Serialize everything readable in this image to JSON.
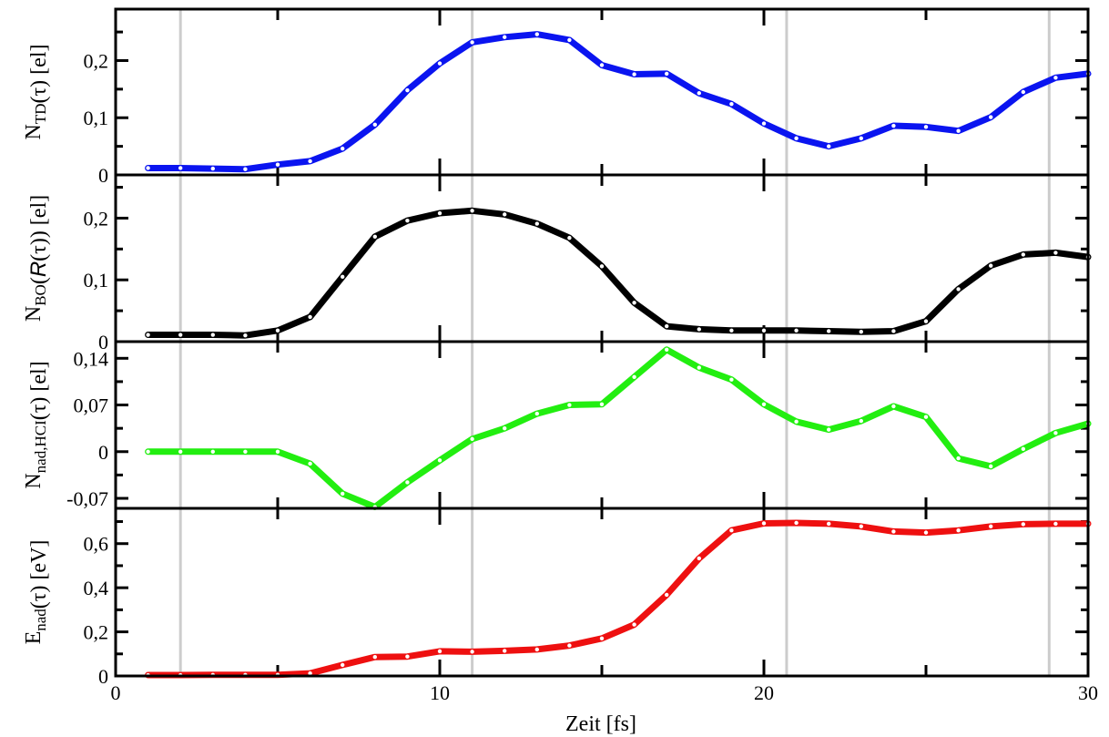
{
  "chart_data": {
    "type": "line",
    "xlabel": "Zeit [fs]",
    "xlim": [
      0,
      30
    ],
    "xticks": [
      0,
      10,
      20,
      30
    ],
    "xtick_labels": [
      "0",
      "10",
      "20",
      "30"
    ],
    "vertical_reference_lines": [
      2,
      11,
      20.7,
      28.8
    ],
    "grid": false,
    "panels": [
      {
        "id": "ntd",
        "ylabel_parts": [
          {
            "t": "N",
            "role": "base"
          },
          {
            "t": "TD",
            "role": "sub"
          },
          {
            "t": "(τ) [el]",
            "role": "base"
          }
        ],
        "ylim": [
          0,
          0.29
        ],
        "yticks": [
          0,
          0.1,
          0.2
        ],
        "ytick_labels": [
          "0",
          "0,1",
          "0,2"
        ],
        "color": "#0a14f0",
        "x": [
          1,
          2,
          3,
          4,
          5,
          6,
          7,
          8,
          9,
          10,
          11,
          12,
          13,
          14,
          15,
          16,
          17,
          18,
          19,
          20,
          21,
          22,
          23,
          24,
          25,
          26,
          27,
          28,
          29,
          30
        ],
        "values": [
          0.012,
          0.012,
          0.011,
          0.01,
          0.018,
          0.024,
          0.046,
          0.088,
          0.148,
          0.195,
          0.232,
          0.241,
          0.246,
          0.236,
          0.192,
          0.176,
          0.177,
          0.143,
          0.124,
          0.09,
          0.064,
          0.05,
          0.064,
          0.086,
          0.084,
          0.077,
          0.101,
          0.145,
          0.17,
          0.177
        ]
      },
      {
        "id": "nbo",
        "ylabel_parts": [
          {
            "t": "N",
            "role": "base"
          },
          {
            "t": "BO",
            "role": "sub"
          },
          {
            "t": "(",
            "role": "base"
          },
          {
            "t": "R",
            "role": "italic"
          },
          {
            "t": "(τ)) [el]",
            "role": "base"
          }
        ],
        "ylim": [
          0,
          0.27
        ],
        "yticks": [
          0,
          0.1,
          0.2
        ],
        "ytick_labels": [
          "0",
          "0,1",
          "0,2"
        ],
        "color": "#000000",
        "x": [
          1,
          2,
          3,
          4,
          5,
          6,
          7,
          8,
          9,
          10,
          11,
          12,
          13,
          14,
          15,
          16,
          17,
          18,
          19,
          20,
          21,
          22,
          23,
          24,
          25,
          26,
          27,
          28,
          29,
          30
        ],
        "values": [
          0.011,
          0.011,
          0.011,
          0.01,
          0.018,
          0.04,
          0.105,
          0.17,
          0.196,
          0.208,
          0.212,
          0.206,
          0.191,
          0.168,
          0.122,
          0.063,
          0.025,
          0.02,
          0.018,
          0.018,
          0.018,
          0.017,
          0.016,
          0.017,
          0.033,
          0.085,
          0.123,
          0.141,
          0.144,
          0.137
        ]
      },
      {
        "id": "nnad",
        "ylabel_parts": [
          {
            "t": "N",
            "role": "base"
          },
          {
            "t": "nad,HCI",
            "role": "sub"
          },
          {
            "t": "(τ) [el]",
            "role": "base"
          }
        ],
        "ylim": [
          -0.085,
          0.165
        ],
        "yticks": [
          -0.07,
          0,
          0.07,
          0.14
        ],
        "ytick_labels": [
          "-0,07",
          "0",
          "0,07",
          "0,14"
        ],
        "color": "#22ee10",
        "x": [
          1,
          2,
          3,
          4,
          5,
          6,
          7,
          8,
          9,
          10,
          11,
          12,
          13,
          14,
          15,
          16,
          17,
          18,
          19,
          20,
          21,
          22,
          23,
          24,
          25,
          26,
          27,
          28,
          29,
          30
        ],
        "values": [
          0.0,
          0.0,
          0.0,
          0.0,
          0.0,
          -0.018,
          -0.063,
          -0.083,
          -0.046,
          -0.013,
          0.019,
          0.035,
          0.057,
          0.07,
          0.071,
          0.112,
          0.153,
          0.126,
          0.108,
          0.071,
          0.045,
          0.033,
          0.046,
          0.068,
          0.052,
          -0.01,
          -0.022,
          0.004,
          0.028,
          0.042
        ]
      },
      {
        "id": "enad",
        "ylabel_parts": [
          {
            "t": "E",
            "role": "base"
          },
          {
            "t": "nad",
            "role": "sub"
          },
          {
            "t": "(τ) [eV]",
            "role": "base"
          }
        ],
        "ylim": [
          0,
          0.76
        ],
        "yticks": [
          0,
          0.2,
          0.4,
          0.6
        ],
        "ytick_labels": [
          "0",
          "0,2",
          "0,4",
          "0,6"
        ],
        "color": "#ee1010",
        "x": [
          1,
          2,
          3,
          4,
          5,
          6,
          7,
          8,
          9,
          10,
          11,
          12,
          13,
          14,
          15,
          16,
          17,
          18,
          19,
          20,
          21,
          22,
          23,
          24,
          25,
          26,
          27,
          28,
          29,
          30
        ],
        "values": [
          0.004,
          0.004,
          0.005,
          0.005,
          0.005,
          0.012,
          0.05,
          0.086,
          0.088,
          0.112,
          0.11,
          0.114,
          0.12,
          0.138,
          0.17,
          0.233,
          0.368,
          0.533,
          0.66,
          0.692,
          0.694,
          0.69,
          0.678,
          0.655,
          0.65,
          0.66,
          0.678,
          0.688,
          0.69,
          0.69
        ]
      }
    ]
  }
}
